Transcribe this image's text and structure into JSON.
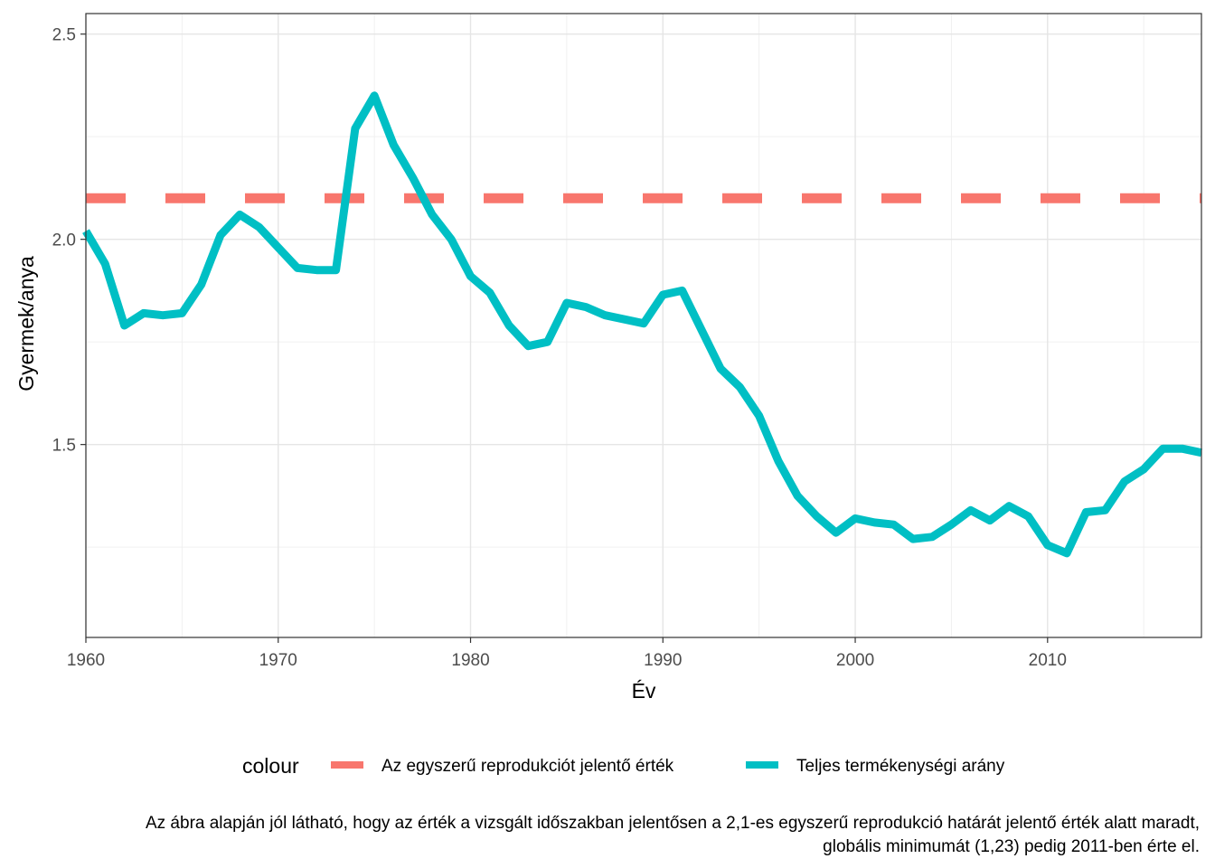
{
  "chart_data": {
    "type": "line",
    "xlabel": "Év",
    "ylabel": "Gyermek/anya",
    "xlim": [
      1960,
      2018
    ],
    "ylim": [
      1.03,
      2.55
    ],
    "x_ticks": [
      1960,
      1970,
      1980,
      1990,
      2000,
      2010
    ],
    "x_tick_labels": [
      "1960",
      "1970",
      "1980",
      "1990",
      "2000",
      "2010"
    ],
    "y_ticks": [
      1.5,
      2.0,
      2.5
    ],
    "y_tick_labels": [
      "1.5",
      "2.0",
      "2.5"
    ],
    "grid": true,
    "legend": {
      "title": "colour",
      "position": "bottom",
      "entries": [
        "Az egyszerű reprodukciót jelentő érték",
        "Teljes termékenységi arány"
      ]
    },
    "series": [
      {
        "name": "Az egyszerű reprodukciót jelentő érték",
        "color": "#F8766D",
        "style": "dashed",
        "x": [
          1960,
          2018
        ],
        "values": [
          2.1,
          2.1
        ]
      },
      {
        "name": "Teljes termékenységi arány",
        "color": "#00BFC4",
        "style": "solid",
        "x": [
          1960,
          1961,
          1962,
          1963,
          1964,
          1965,
          1966,
          1967,
          1968,
          1969,
          1970,
          1971,
          1972,
          1973,
          1974,
          1975,
          1976,
          1977,
          1978,
          1979,
          1980,
          1981,
          1982,
          1983,
          1984,
          1985,
          1986,
          1987,
          1988,
          1989,
          1990,
          1991,
          1992,
          1993,
          1994,
          1995,
          1996,
          1997,
          1998,
          1999,
          2000,
          2001,
          2002,
          2003,
          2004,
          2005,
          2006,
          2007,
          2008,
          2009,
          2010,
          2011,
          2012,
          2013,
          2014,
          2015,
          2016,
          2017,
          2018
        ],
        "values": [
          2.02,
          1.94,
          1.79,
          1.82,
          1.815,
          1.82,
          1.89,
          2.01,
          2.06,
          2.03,
          1.98,
          1.93,
          1.925,
          1.925,
          2.27,
          2.35,
          2.23,
          2.15,
          2.06,
          2.0,
          1.91,
          1.87,
          1.79,
          1.74,
          1.75,
          1.845,
          1.835,
          1.815,
          1.805,
          1.795,
          1.865,
          1.875,
          1.78,
          1.685,
          1.64,
          1.57,
          1.46,
          1.375,
          1.325,
          1.285,
          1.32,
          1.31,
          1.305,
          1.27,
          1.275,
          1.305,
          1.34,
          1.315,
          1.35,
          1.325,
          1.255,
          1.235,
          1.335,
          1.34,
          1.41,
          1.44,
          1.49,
          1.49,
          1.48
        ]
      }
    ],
    "caption_lines": [
      "Az ábra alapján jól látható, hogy az érték a vizsgált időszakban jelentősen a 2,1-es egyszerű reprodukció határát jelentő érték alatt maradt,",
      "globális minimumát (1,23) pedig 2011-ben érte el."
    ]
  }
}
